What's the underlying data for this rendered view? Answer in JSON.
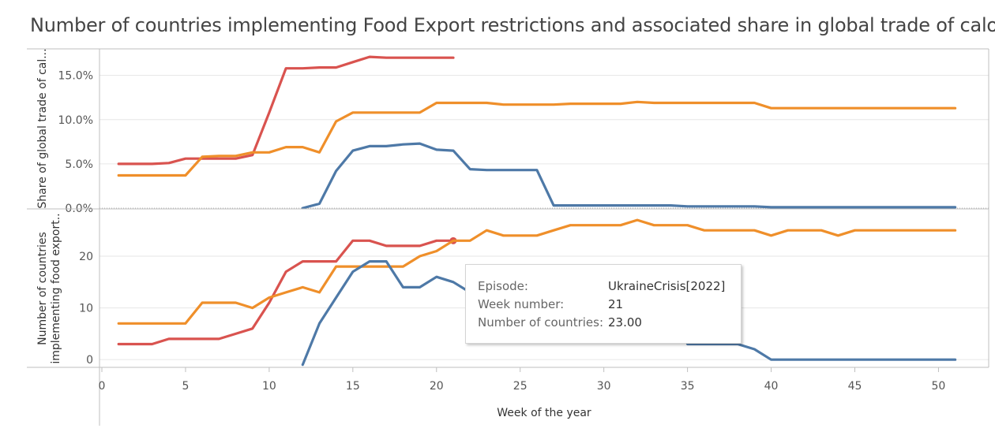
{
  "title": "Number of countries implementing Food Export restrictions and associated share in global trade of calories",
  "colors": {
    "series_red": "#d9534f",
    "series_orange": "#ef8f2a",
    "series_blue": "#4e79a7",
    "grid": "#e6e6e6",
    "axis": "#bfbfbf"
  },
  "tooltip": {
    "episode_label": "Episode:",
    "episode_value": "UkraineCrisis[2022]",
    "week_label": "Week number:",
    "week_value": "21",
    "count_label": "Number of countries:",
    "count_value": "23.00"
  },
  "chart_data": [
    {
      "type": "line",
      "ylabel": "Share of global trade of cal...",
      "ylim": [
        0,
        18
      ],
      "yticks": [
        0,
        5,
        10,
        15
      ],
      "ytick_labels": [
        "0.0%",
        "5.0%",
        "10.0%",
        "15.0%"
      ],
      "series": [
        {
          "color": "#d9534f",
          "x": [
            1,
            2,
            3,
            4,
            5,
            6,
            7,
            8,
            9,
            10,
            11,
            12,
            13,
            14,
            15,
            16,
            17,
            18,
            19,
            20,
            21
          ],
          "y": [
            5.0,
            5.0,
            5.0,
            5.1,
            5.6,
            5.6,
            5.6,
            5.6,
            6.0,
            10.8,
            15.8,
            15.8,
            15.9,
            15.9,
            16.5,
            17.1,
            17.0,
            17.0,
            17.0,
            17.0,
            17.0
          ]
        },
        {
          "color": "#ef8f2a",
          "x": [
            1,
            2,
            3,
            4,
            5,
            6,
            7,
            8,
            9,
            10,
            11,
            12,
            13,
            14,
            15,
            16,
            17,
            18,
            19,
            20,
            21,
            22,
            23,
            24,
            25,
            26,
            27,
            28,
            29,
            30,
            31,
            32,
            33,
            34,
            35,
            36,
            37,
            38,
            39,
            40,
            41,
            42,
            43,
            44,
            45,
            46,
            47,
            48,
            49,
            50,
            51
          ],
          "y": [
            3.7,
            3.7,
            3.7,
            3.7,
            3.7,
            5.8,
            5.9,
            5.9,
            6.3,
            6.3,
            6.9,
            6.9,
            6.3,
            9.8,
            10.8,
            10.8,
            10.8,
            10.8,
            10.8,
            11.9,
            11.9,
            11.9,
            11.9,
            11.7,
            11.7,
            11.7,
            11.7,
            11.8,
            11.8,
            11.8,
            11.8,
            12.0,
            11.9,
            11.9,
            11.9,
            11.9,
            11.9,
            11.9,
            11.9,
            11.3,
            11.3,
            11.3,
            11.3,
            11.3,
            11.3,
            11.3,
            11.3,
            11.3,
            11.3,
            11.3,
            11.3
          ]
        },
        {
          "color": "#4e79a7",
          "x": [
            12,
            13,
            14,
            15,
            16,
            17,
            18,
            19,
            20,
            21,
            22,
            23,
            24,
            25,
            26,
            27,
            28,
            29,
            30,
            31,
            32,
            33,
            34,
            35,
            36,
            37,
            38,
            39,
            40,
            41,
            42,
            43,
            44,
            45,
            46,
            47,
            48,
            49,
            50,
            51
          ],
          "y": [
            0.0,
            0.5,
            4.2,
            6.5,
            7.0,
            7.0,
            7.2,
            7.3,
            6.6,
            6.5,
            4.4,
            4.3,
            4.3,
            4.3,
            4.3,
            0.3,
            0.3,
            0.3,
            0.3,
            0.3,
            0.3,
            0.3,
            0.3,
            0.2,
            0.2,
            0.2,
            0.2,
            0.2,
            0.1,
            0.1,
            0.1,
            0.1,
            0.1,
            0.1,
            0.1,
            0.1,
            0.1,
            0.1,
            0.1,
            0.1
          ]
        }
      ]
    },
    {
      "type": "line",
      "ylabel": "Number of countries implementing food export...",
      "ylabel_lines": [
        "Number of countries",
        "implementing food export.."
      ],
      "xlabel": "Week of the year",
      "xlim": [
        0,
        53
      ],
      "xticks": [
        0,
        5,
        10,
        15,
        20,
        25,
        30,
        35,
        40,
        45,
        50
      ],
      "ylim": [
        -1.5,
        29
      ],
      "yticks": [
        0,
        10,
        20
      ],
      "ytick_labels": [
        "0",
        "10",
        "20"
      ],
      "series": [
        {
          "color": "#d9534f",
          "x": [
            1,
            2,
            3,
            4,
            5,
            6,
            7,
            8,
            9,
            10,
            11,
            12,
            13,
            14,
            15,
            16,
            17,
            18,
            19,
            20,
            21
          ],
          "y": [
            3,
            3,
            3,
            4,
            4,
            4,
            4,
            5,
            6,
            11,
            17,
            19,
            19,
            19,
            23,
            23,
            22,
            22,
            22,
            23,
            23
          ],
          "highlight_index": 20
        },
        {
          "color": "#ef8f2a",
          "x": [
            1,
            2,
            3,
            4,
            5,
            6,
            7,
            8,
            9,
            10,
            11,
            12,
            13,
            14,
            15,
            16,
            17,
            18,
            19,
            20,
            21,
            22,
            23,
            24,
            25,
            26,
            27,
            28,
            29,
            30,
            31,
            32,
            33,
            34,
            35,
            36,
            37,
            38,
            39,
            40,
            41,
            42,
            43,
            44,
            45,
            46,
            47,
            48,
            49,
            50,
            51
          ],
          "y": [
            7,
            7,
            7,
            7,
            7,
            11,
            11,
            11,
            10,
            12,
            13,
            14,
            13,
            18,
            18,
            18,
            18,
            18,
            20,
            21,
            23,
            23,
            25,
            24,
            24,
            24,
            25,
            26,
            26,
            26,
            26,
            27,
            26,
            26,
            26,
            25,
            25,
            25,
            25,
            24,
            25,
            25,
            25,
            24,
            25,
            25,
            25,
            25,
            25,
            25,
            25
          ]
        },
        {
          "color": "#4e79a7",
          "x": [
            12,
            13,
            14,
            15,
            16,
            17,
            18,
            19,
            20,
            21,
            22,
            23,
            24,
            25,
            26,
            27,
            28,
            29,
            30,
            31,
            32,
            33,
            34,
            35,
            36,
            37,
            38,
            39,
            40,
            41,
            42,
            43,
            44,
            45,
            46,
            47,
            48,
            49,
            50,
            51
          ],
          "y": [
            -1,
            7,
            12,
            17,
            19,
            19,
            14,
            14,
            16,
            15,
            13,
            12,
            12,
            12,
            12,
            12,
            12,
            12,
            12,
            12,
            12,
            12,
            12,
            3,
            3,
            3,
            3,
            2,
            0,
            0,
            0,
            0,
            0,
            0,
            0,
            0,
            0,
            0,
            0,
            0
          ]
        }
      ]
    }
  ]
}
